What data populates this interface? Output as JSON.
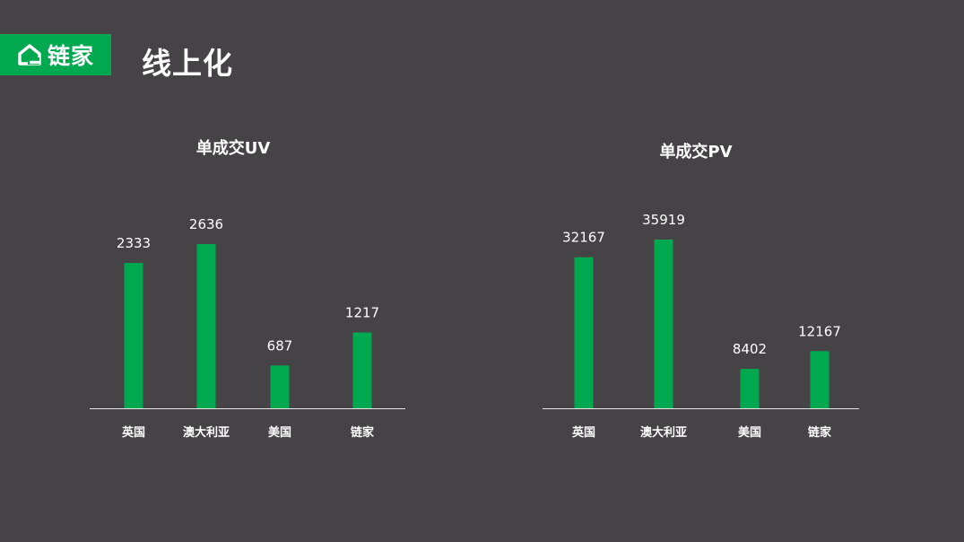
{
  "brand": {
    "logo_text": "链家",
    "color": "#00a84f"
  },
  "page": {
    "title": "线上化",
    "background": "#454345"
  },
  "chart_data": [
    {
      "type": "bar",
      "title": "单成交UV",
      "categories": [
        "英国",
        "澳大利亚",
        "美国",
        "链家"
      ],
      "values": [
        2333,
        2636,
        687,
        1217
      ],
      "ylim": [
        0,
        2636
      ],
      "bar_color": "#00a84f",
      "grid": false,
      "legend": "none"
    },
    {
      "type": "bar",
      "title": "单成交PV",
      "categories": [
        "英国",
        "澳大利亚",
        "美国",
        "链家"
      ],
      "values": [
        32167,
        35919,
        8402,
        12167
      ],
      "ylim": [
        0,
        35919
      ],
      "bar_color": "#00a84f",
      "grid": false,
      "legend": "none"
    }
  ]
}
